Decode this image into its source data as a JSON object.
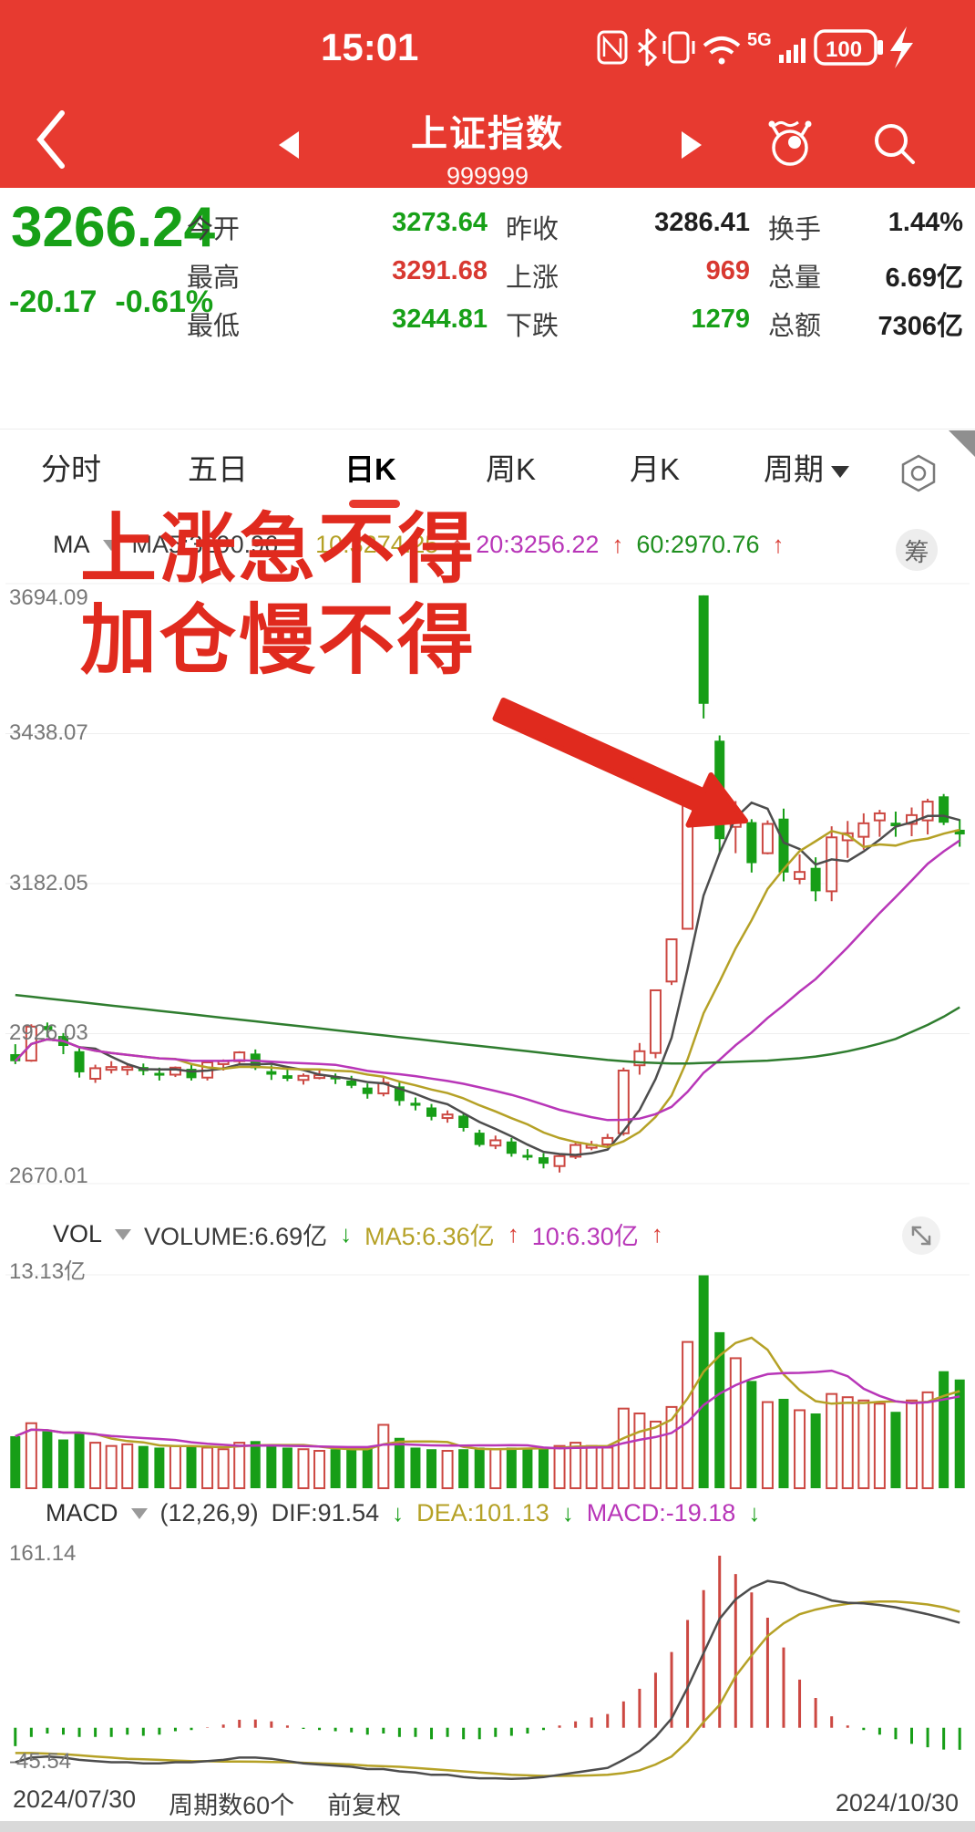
{
  "status_bar": {
    "time": "15:01",
    "battery": "100",
    "network_label": "5G",
    "icons": [
      "nfc-icon",
      "bluetooth-icon",
      "vibrate-icon",
      "wifi-icon",
      "signal-5g-icon",
      "battery-icon",
      "charging-bolt-icon"
    ]
  },
  "nav": {
    "title": "上证指数",
    "code": "999999"
  },
  "price_panel": {
    "price": "3266.24",
    "change": "-20.17",
    "change_pct": "-0.61%"
  },
  "quote": {
    "cells": [
      {
        "label": "今开",
        "value": "3273.64",
        "color": "green"
      },
      {
        "label": "昨收",
        "value": "3286.41",
        "color": "dark"
      },
      {
        "label": "换手",
        "value": "1.44%",
        "color": "dark"
      },
      {
        "label": "最高",
        "value": "3291.68",
        "color": "red"
      },
      {
        "label": "上涨",
        "value": "969",
        "color": "red"
      },
      {
        "label": "总量",
        "value": "6.69亿",
        "color": "dark"
      },
      {
        "label": "最低",
        "value": "3244.81",
        "color": "green"
      },
      {
        "label": "下跌",
        "value": "1279",
        "color": "green"
      },
      {
        "label": "总额",
        "value": "7306亿",
        "color": "dark"
      }
    ]
  },
  "tabs": [
    {
      "label": "分时",
      "active": false
    },
    {
      "label": "五日",
      "active": false
    },
    {
      "label": "日K",
      "active": true
    },
    {
      "label": "周K",
      "active": false
    },
    {
      "label": "月K",
      "active": false
    },
    {
      "label": "周期",
      "active": false,
      "dropdown": true
    }
  ],
  "ma_header": {
    "name": "MA",
    "items": [
      {
        "text": "MA5:3290.96",
        "arrow": "↓"
      },
      {
        "text": "10:3274.25",
        "arrow": "↑"
      },
      {
        "text": "20:3256.22",
        "arrow": "↑"
      },
      {
        "text": "60:2970.76",
        "arrow": "↑"
      }
    ]
  },
  "vol_header": {
    "name": "VOL",
    "items": [
      {
        "text": "VOLUME:6.69亿",
        "arrow": "↓"
      },
      {
        "text": "MA5:6.36亿",
        "arrow": "↑"
      },
      {
        "text": "10:6.30亿",
        "arrow": "↑"
      }
    ]
  },
  "macd_header": {
    "name": "MACD",
    "params": "(12,26,9)",
    "items": [
      {
        "text": "DIF:91.54",
        "arrow": "↓"
      },
      {
        "text": "DEA:101.13",
        "arrow": "↓"
      },
      {
        "text": "MACD:-19.18",
        "arrow": "↓"
      }
    ]
  },
  "overlay": {
    "line1": "上涨急不得",
    "line2": "加仓慢不得"
  },
  "badge": {
    "chips": "筹"
  },
  "footer": {
    "start_date": "2024/07/30",
    "period_text": "周期数60个",
    "adjust_text": "前复权",
    "end_date": "2024/10/30"
  },
  "colors": {
    "up": "#cc4842",
    "down": "#179e17",
    "ma5": "#4d4d4d",
    "ma10": "#b5a126",
    "ma20": "#b836b8",
    "ma60": "#2f7d2f",
    "accent_red": "#e73a30",
    "text_green": "#17a017",
    "text_red": "#d83931",
    "grid": "#efefef"
  },
  "chart_data": {
    "type": "candlestick",
    "title": "上证指数 日K",
    "periods": 60,
    "x_start_label": "2024/07/30",
    "x_end_label": "2024/10/30",
    "kline": {
      "ylim": [
        2670.01,
        3694.09
      ],
      "grid_values": [
        3694.09,
        3438.07,
        3182.05,
        2926.03,
        2670.01
      ],
      "y_axis_labels": [
        "3694.09",
        "3438.07",
        "3182.05",
        "2926.03",
        "2670.01"
      ],
      "candles": [
        [
          2891,
          2908,
          2874,
          2879
        ],
        [
          2880,
          2942,
          2878,
          2938
        ],
        [
          2939,
          2945,
          2920,
          2932
        ],
        [
          2922,
          2927,
          2891,
          2905
        ],
        [
          2896,
          2901,
          2851,
          2860
        ],
        [
          2849,
          2873,
          2842,
          2867
        ],
        [
          2869,
          2879,
          2858,
          2869
        ],
        [
          2866,
          2874,
          2855,
          2869
        ],
        [
          2869,
          2875,
          2855,
          2862
        ],
        [
          2859,
          2868,
          2846,
          2858
        ],
        [
          2856,
          2870,
          2852,
          2868
        ],
        [
          2866,
          2874,
          2846,
          2850
        ],
        [
          2851,
          2879,
          2846,
          2877
        ],
        [
          2874,
          2882,
          2863,
          2879
        ],
        [
          2879,
          2896,
          2874,
          2894
        ],
        [
          2892,
          2899,
          2864,
          2867
        ],
        [
          2862,
          2872,
          2847,
          2856
        ],
        [
          2855,
          2867,
          2845,
          2849
        ],
        [
          2847,
          2858,
          2839,
          2854
        ],
        [
          2855,
          2864,
          2848,
          2855
        ],
        [
          2853,
          2858,
          2840,
          2848
        ],
        [
          2846,
          2854,
          2833,
          2837
        ],
        [
          2834,
          2841,
          2815,
          2823
        ],
        [
          2824,
          2851,
          2819,
          2842
        ],
        [
          2836,
          2845,
          2803,
          2811
        ],
        [
          2808,
          2817,
          2795,
          2803
        ],
        [
          2800,
          2806,
          2778,
          2784
        ],
        [
          2782,
          2795,
          2774,
          2788
        ],
        [
          2786,
          2790,
          2759,
          2765
        ],
        [
          2757,
          2762,
          2733,
          2736
        ],
        [
          2735,
          2752,
          2729,
          2744
        ],
        [
          2742,
          2748,
          2716,
          2721
        ],
        [
          2719,
          2729,
          2710,
          2717
        ],
        [
          2715,
          2722,
          2696,
          2704
        ],
        [
          2700,
          2720,
          2689,
          2717
        ],
        [
          2716,
          2740,
          2712,
          2736
        ],
        [
          2734,
          2743,
          2727,
          2736
        ],
        [
          2737,
          2755,
          2732,
          2748
        ],
        [
          2756,
          2868,
          2752,
          2863
        ],
        [
          2872,
          2910,
          2856,
          2896
        ],
        [
          2893,
          3000,
          2884,
          3000
        ],
        [
          3015,
          3088,
          3009,
          3087
        ],
        [
          3105,
          3358,
          3105,
          3336
        ],
        [
          3674,
          3674,
          3464,
          3489
        ],
        [
          3426,
          3435,
          3232,
          3258
        ],
        [
          3279,
          3323,
          3234,
          3301
        ],
        [
          3287,
          3292,
          3201,
          3217
        ],
        [
          3234,
          3290,
          3232,
          3284
        ],
        [
          3293,
          3310,
          3186,
          3201
        ],
        [
          3190,
          3232,
          3181,
          3202
        ],
        [
          3209,
          3227,
          3152,
          3169
        ],
        [
          3169,
          3280,
          3152,
          3261
        ],
        [
          3256,
          3289,
          3226,
          3268
        ],
        [
          3262,
          3302,
          3240,
          3285
        ],
        [
          3290,
          3308,
          3262,
          3302
        ],
        [
          3286,
          3305,
          3262,
          3280
        ],
        [
          3284,
          3312,
          3263,
          3299
        ],
        [
          3290,
          3327,
          3266,
          3322
        ],
        [
          3331,
          3335,
          3282,
          3286
        ],
        [
          3274,
          3292,
          3245,
          3266
        ]
      ],
      "ma60": [
        2992,
        2989,
        2986,
        2983,
        2980,
        2977,
        2974,
        2971,
        2968,
        2965,
        2962,
        2959,
        2956,
        2953,
        2950,
        2947,
        2944,
        2941,
        2938,
        2935,
        2932,
        2929,
        2926,
        2923,
        2920,
        2917,
        2914,
        2911,
        2908,
        2905,
        2902,
        2899,
        2896,
        2893,
        2890,
        2887,
        2884,
        2881,
        2879,
        2877,
        2876,
        2875,
        2875,
        2876,
        2877,
        2878,
        2879,
        2880,
        2882,
        2884,
        2887,
        2891,
        2896,
        2902,
        2909,
        2917,
        2929,
        2941,
        2955,
        2971
      ]
    },
    "volume": {
      "ymax": 13.13,
      "y_axis_label": "13.13亿",
      "values": [
        3.2,
        4.0,
        3.5,
        3.0,
        3.4,
        2.8,
        2.6,
        2.7,
        2.6,
        2.5,
        2.6,
        2.6,
        2.5,
        2.4,
        2.8,
        2.9,
        2.7,
        2.5,
        2.4,
        2.3,
        2.4,
        2.4,
        2.5,
        3.9,
        3.1,
        2.5,
        2.4,
        2.3,
        2.4,
        2.5,
        2.4,
        2.5,
        2.4,
        2.5,
        2.6,
        2.8,
        2.6,
        2.5,
        4.9,
        4.6,
        4.1,
        5.0,
        9.0,
        13.1,
        9.6,
        8.0,
        6.6,
        5.3,
        5.5,
        4.8,
        4.6,
        5.8,
        5.6,
        5.4,
        5.2,
        4.7,
        5.4,
        5.9,
        7.2,
        6.69
      ]
    },
    "macd": {
      "ylim": [
        -45.54,
        161.14
      ],
      "y_top_label": "161.14",
      "y_bottom_label": "-45.54",
      "dif": [
        -30,
        -26,
        -25,
        -26,
        -28,
        -29,
        -30,
        -30,
        -31,
        -31,
        -30,
        -30,
        -29,
        -28,
        -26,
        -26,
        -27,
        -29,
        -31,
        -32,
        -33,
        -34,
        -36,
        -36,
        -38,
        -39,
        -41,
        -41,
        -43,
        -44,
        -44,
        -44.5,
        -44,
        -43,
        -41,
        -39,
        -37,
        -35,
        -28,
        -20,
        -8,
        8,
        35,
        65,
        95,
        112,
        122,
        128,
        126,
        120,
        116,
        111,
        109,
        108.5,
        107,
        105,
        102,
        99,
        95.5,
        91.54
      ],
      "dea": [
        -22,
        -22,
        -22.5,
        -23,
        -24,
        -25,
        -26,
        -27,
        -27.5,
        -28,
        -28.5,
        -29,
        -29.2,
        -29.4,
        -29.5,
        -29.6,
        -29.8,
        -30,
        -30.5,
        -31,
        -31.5,
        -32,
        -33,
        -33.5,
        -34,
        -35,
        -36,
        -37,
        -38,
        -39,
        -40,
        -41,
        -41.5,
        -42,
        -42,
        -41.8,
        -41.5,
        -41,
        -39.5,
        -37,
        -32,
        -25,
        -12,
        5,
        20,
        45,
        63,
        80,
        91,
        99,
        103,
        106,
        108,
        109.5,
        110,
        110,
        109,
        107.5,
        105,
        101.13
      ]
    }
  }
}
